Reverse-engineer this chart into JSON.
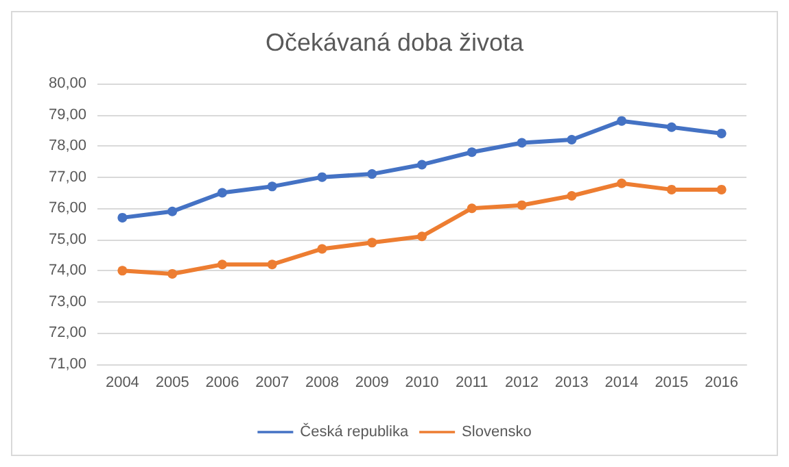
{
  "chart_data": {
    "type": "line",
    "title": "Očekávaná doba života",
    "categories": [
      "2004",
      "2005",
      "2006",
      "2007",
      "2008",
      "2009",
      "2010",
      "2011",
      "2012",
      "2013",
      "2014",
      "2015",
      "2016"
    ],
    "series": [
      {
        "name": "Česká republika",
        "color": "#4472c4",
        "values": [
          75.7,
          75.9,
          76.5,
          76.7,
          77.0,
          77.1,
          77.4,
          77.8,
          78.1,
          78.2,
          78.8,
          78.6,
          78.4
        ]
      },
      {
        "name": "Slovensko",
        "color": "#ed7d31",
        "values": [
          74.0,
          73.9,
          74.2,
          74.2,
          74.7,
          74.9,
          75.1,
          76.0,
          76.1,
          76.4,
          76.8,
          76.6,
          76.6
        ]
      }
    ],
    "ylim": [
      71,
      80
    ],
    "yticks": [
      {
        "value": 71,
        "label": "71,00"
      },
      {
        "value": 72,
        "label": "72,00"
      },
      {
        "value": 73,
        "label": "73,00"
      },
      {
        "value": 74,
        "label": "74,00"
      },
      {
        "value": 75,
        "label": "75,00"
      },
      {
        "value": 76,
        "label": "76,00"
      },
      {
        "value": 77,
        "label": "77,00"
      },
      {
        "value": 78,
        "label": "78,00"
      },
      {
        "value": 79,
        "label": "79,00"
      },
      {
        "value": 80,
        "label": "80,00"
      }
    ],
    "grid": "y",
    "legend": "bottom",
    "marker": "circle",
    "line_style": "solid"
  }
}
